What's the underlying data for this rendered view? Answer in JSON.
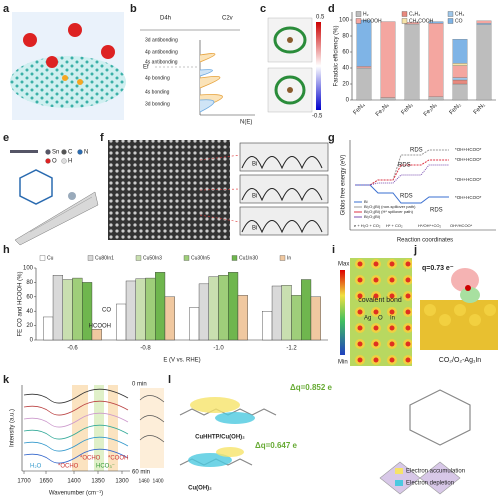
{
  "labels": [
    "a",
    "b",
    "c",
    "d",
    "e",
    "f",
    "g",
    "h",
    "i",
    "j",
    "k",
    "l"
  ],
  "b": {
    "left": "D4h",
    "right": "C2v",
    "ef": "Ef",
    "axis": "N(E)",
    "levels": [
      "3d antibonding",
      "4p antibonding",
      "4s antibonding",
      "4p bonding",
      "4s bonding",
      "3d bonding"
    ]
  },
  "c": {
    "cbar": [
      0.5,
      -0.5
    ]
  },
  "d": {
    "chart_data": {
      "type": "bar",
      "stacked": true,
      "ylabel": "Faradaic efficiency (%)",
      "categories": [
        "FeN₄",
        "Fe₂N₆",
        "FeN₃",
        "Fe₂N₅",
        "FeN₂",
        "FeN₁"
      ],
      "ylim": [
        0,
        110
      ],
      "yticks": [
        0,
        20,
        40,
        60,
        80,
        100
      ],
      "series": [
        {
          "name": "H₂",
          "color": "#bdbdbd",
          "values": [
            40,
            3,
            95,
            4,
            20,
            94
          ]
        },
        {
          "name": "C₂H₄",
          "color": "#e8897e",
          "values": [
            0,
            0,
            0,
            0,
            5,
            0
          ]
        },
        {
          "name": "CH₄",
          "color": "#9fc6e8",
          "values": [
            0,
            0,
            0,
            0,
            3,
            2
          ]
        },
        {
          "name": "HCOOH",
          "color": "#f4a6a0",
          "values": [
            2,
            95,
            2,
            92,
            15,
            3
          ]
        },
        {
          "name": "CH₃COOH",
          "color": "#f6e3a8",
          "values": [
            0,
            0,
            0,
            0,
            3,
            0
          ]
        },
        {
          "name": "CO",
          "color": "#7fb4e6",
          "values": [
            58,
            0,
            0,
            2,
            30,
            0
          ]
        }
      ]
    }
  },
  "e": {
    "legend": [
      "Sn",
      "C",
      "N",
      "O",
      "H"
    ]
  },
  "f": {
    "peaks": [
      "Bi",
      "Bi",
      "Bi"
    ]
  },
  "g": {
    "ylabel": "Gibbs free energy (eV)",
    "xlabel": "Reaction coordinates",
    "rds": [
      "RDS",
      "RDS",
      "RDS",
      "RDS"
    ],
    "states": [
      "*OH+HCOO*",
      "*OH+HCOO*",
      "*OH+HCOO*",
      "*OH+HCOO*"
    ],
    "legend": [
      "Bi",
      "Bi₂O₃(Bi) (non-spillover path)",
      "Bi₂O₃(Bi) (H* spillover path)",
      "Bi₂O₃(Bi)"
    ],
    "steps": [
      "e + H₂O + CO₂",
      "H* + CO₂",
      "H*/OH*+CO₂",
      "OH*/HCOO*"
    ]
  },
  "h": {
    "chart_data": {
      "type": "bar",
      "ylabel": "FE CO and HCOOH (%)",
      "xlabel": "E (V vs. RHE)",
      "categories": [
        "-0.6",
        "-0.8",
        "-1.0",
        "-1.2"
      ],
      "ylim": [
        0,
        100
      ],
      "yticks": [
        0,
        20,
        40,
        60,
        80,
        100
      ],
      "annotations": [
        "CO",
        "HCOOH"
      ],
      "series": [
        {
          "name": "Cu",
          "color": "#ffffff",
          "values": [
            32,
            50,
            45,
            40
          ]
        },
        {
          "name": "Cu80In1",
          "color": "#d9d9d9",
          "values": [
            90,
            82,
            78,
            75
          ]
        },
        {
          "name": "Cu50In3",
          "color": "#c9dfb0",
          "values": [
            84,
            85,
            88,
            76
          ]
        },
        {
          "name": "Cu30In5",
          "color": "#9fce7a",
          "values": [
            86,
            86,
            90,
            62
          ]
        },
        {
          "name": "Cu1In30",
          "color": "#6fb64e",
          "values": [
            80,
            94,
            94,
            84
          ]
        },
        {
          "name": "In",
          "color": "#f0c8a0",
          "values": [
            15,
            60,
            62,
            60
          ]
        }
      ]
    }
  },
  "i": {
    "max": "Max",
    "min": "Min",
    "note": "covalent bond",
    "atoms": [
      "Ag",
      "O",
      "In"
    ]
  },
  "j": {
    "q": "q=0.73 e⁻",
    "name": "CO₂/O₂-Ag₁In"
  },
  "k": {
    "ylabel": "Intensity (a.u.)",
    "xlabel": "Wavenumber (cm⁻¹)",
    "xticks": [
      1700,
      1650,
      1400,
      1350,
      1300
    ],
    "bands": [
      "H₂O",
      "*OCHO",
      "*OCHO",
      "HCO₃⁻",
      "*COOH"
    ],
    "time": [
      "0 min",
      "60 min"
    ],
    "inset_ticks": [
      1460,
      1400
    ]
  },
  "l": {
    "dq": [
      "Δq=0.852 e",
      "Δq=0.647 e"
    ],
    "names": [
      "CuHHTP/Cu(OH)₂",
      "Cu(OH)₂"
    ],
    "legend": [
      "Electron accumulation",
      "Electron depletion"
    ]
  }
}
